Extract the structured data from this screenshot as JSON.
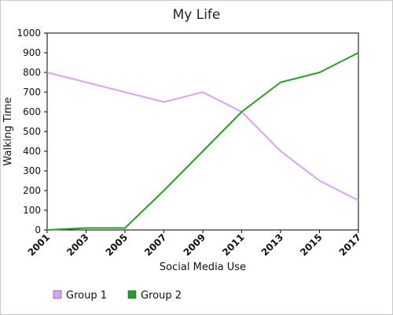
{
  "chart_data": {
    "type": "line",
    "title": "My Life",
    "xlabel": "Social Media Use",
    "ylabel": "Walking Time",
    "x": [
      "2001",
      "2003",
      "2005",
      "2007",
      "2009",
      "2011",
      "2013",
      "2015",
      "2017"
    ],
    "ylim": [
      0,
      1000
    ],
    "yticks": [
      0,
      100,
      200,
      300,
      400,
      500,
      600,
      700,
      800,
      900,
      1000
    ],
    "grid": false,
    "legend_position": "bottom-left",
    "series": [
      {
        "name": "Group 1",
        "color": "#d9a3f5",
        "values": [
          800,
          750,
          700,
          650,
          700,
          600,
          400,
          250,
          150
        ]
      },
      {
        "name": "Group 2",
        "color": "#2a9a2a",
        "values": [
          0,
          10,
          10,
          200,
          400,
          600,
          750,
          800,
          900
        ]
      }
    ]
  }
}
